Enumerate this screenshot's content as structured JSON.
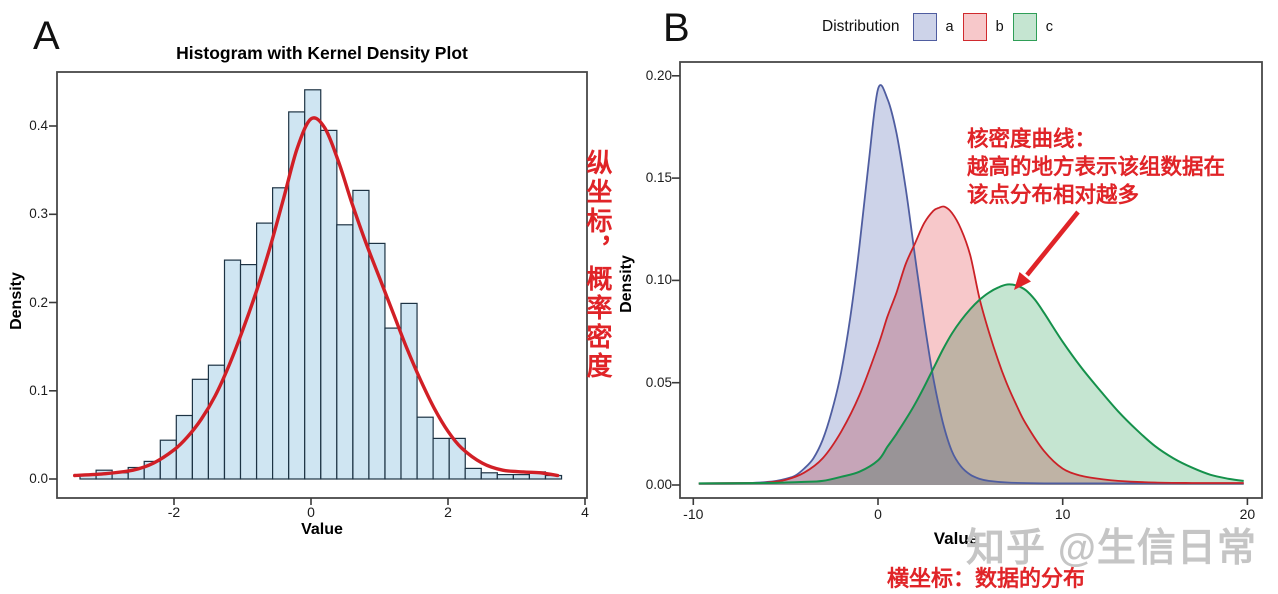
{
  "watermark_text": "知乎 @生信日常",
  "annotations": {
    "note_color": "#e02428",
    "y_axis_note_vertical": "纵坐标，概率密度",
    "kde_note_line1": "核密度曲线：",
    "kde_note_line2": "越高的地方表示该组数据在",
    "kde_note_line3": "该点分布相对越多",
    "x_axis_note": "横坐标：数据的分布"
  },
  "chart_data": [
    {
      "id": "A",
      "panel_label": "A",
      "type": "histogram+kde",
      "title": "Histogram with Kernel Density Plot",
      "xlabel": "Value",
      "ylabel": "Density",
      "xlim": [
        -3.75,
        4.05
      ],
      "ylim": [
        0,
        0.461
      ],
      "x_ticks": [
        {
          "v": -2,
          "label": "-2"
        },
        {
          "v": 0,
          "label": "0"
        },
        {
          "v": 2,
          "label": "2"
        },
        {
          "v": 4,
          "label": "4"
        }
      ],
      "y_ticks": [
        {
          "v": 0.0,
          "label": "0.0"
        },
        {
          "v": 0.1,
          "label": "0.1"
        },
        {
          "v": 0.2,
          "label": "0.2"
        },
        {
          "v": 0.3,
          "label": "0.3"
        },
        {
          "v": 0.4,
          "label": "0.4"
        }
      ],
      "bars": {
        "fill": "#cfe5f2",
        "stroke": "#1d3344",
        "bin_start": -3.372,
        "bin_width": 0.2343,
        "heights": [
          0.005,
          0.01,
          0.007,
          0.013,
          0.02,
          0.044,
          0.072,
          0.113,
          0.129,
          0.248,
          0.243,
          0.29,
          0.33,
          0.416,
          0.441,
          0.395,
          0.288,
          0.327,
          0.267,
          0.171,
          0.199,
          0.07,
          0.046,
          0.046,
          0.012,
          0.007,
          0.005,
          0.005,
          0.008,
          0.004
        ]
      },
      "kde": {
        "color": "#d11f26",
        "x": [
          -3.45,
          -3.0,
          -2.6,
          -2.3,
          -2.0,
          -1.8,
          -1.6,
          -1.4,
          -1.2,
          -1.0,
          -0.8,
          -0.6,
          -0.4,
          -0.2,
          0,
          0.2,
          0.4,
          0.6,
          0.8,
          1.0,
          1.2,
          1.4,
          1.6,
          1.8,
          2.0,
          2.2,
          2.5,
          2.8,
          3.1,
          3.35,
          3.6
        ],
        "y": [
          0.004,
          0.006,
          0.01,
          0.018,
          0.033,
          0.048,
          0.068,
          0.094,
          0.128,
          0.168,
          0.212,
          0.262,
          0.318,
          0.375,
          0.408,
          0.398,
          0.36,
          0.312,
          0.268,
          0.228,
          0.188,
          0.148,
          0.112,
          0.08,
          0.054,
          0.035,
          0.018,
          0.01,
          0.008,
          0.007,
          0.004
        ]
      }
    },
    {
      "id": "B",
      "panel_label": "B",
      "type": "density",
      "xlabel": "Value",
      "ylabel": "Density",
      "xlim": [
        -10.7,
        20.8
      ],
      "ylim": [
        0,
        0.213
      ],
      "x_ticks": [
        {
          "v": -10,
          "label": "-10"
        },
        {
          "v": 0,
          "label": "0"
        },
        {
          "v": 10,
          "label": "10"
        },
        {
          "v": 20,
          "label": "20"
        }
      ],
      "y_ticks": [
        {
          "v": 0.0,
          "label": "0.00"
        },
        {
          "v": 0.05,
          "label": "0.05"
        },
        {
          "v": 0.1,
          "label": "0.10"
        },
        {
          "v": 0.15,
          "label": "0.15"
        },
        {
          "v": 0.2,
          "label": "0.20"
        }
      ],
      "legend": {
        "title": "Distribution",
        "items": [
          {
            "label": "a",
            "fill": "#cdd3e9",
            "stroke": "#4f5da0"
          },
          {
            "label": "b",
            "fill": "#f7c8ca",
            "stroke": "#d02a2e"
          },
          {
            "label": "c",
            "fill": "#c5e5d1",
            "stroke": "#2f9e57"
          }
        ]
      },
      "series": [
        {
          "name": "a",
          "fill": "#cdd3e9",
          "stroke": "#4f5da0",
          "x": [
            -9.7,
            -7,
            -6,
            -5.5,
            -5,
            -4.5,
            -4,
            -3.5,
            -3,
            -2.5,
            -2,
            -1.5,
            -1,
            -0.5,
            0,
            0.5,
            1,
            1.5,
            2,
            2.5,
            3,
            3.5,
            4,
            4.5,
            5,
            5.5,
            6,
            7,
            9,
            12,
            16,
            19.8
          ],
          "y": [
            0.0008,
            0.001,
            0.0015,
            0.002,
            0.003,
            0.0045,
            0.008,
            0.013,
            0.022,
            0.036,
            0.055,
            0.082,
            0.117,
            0.158,
            0.1935,
            0.189,
            0.172,
            0.145,
            0.112,
            0.08,
            0.052,
            0.031,
            0.0165,
            0.009,
            0.005,
            0.003,
            0.002,
            0.0012,
            0.0008,
            0.0008,
            0.0008,
            0.0008
          ]
        },
        {
          "name": "b",
          "fill": "#f7c8ca",
          "stroke": "#cb2127",
          "x": [
            -9.7,
            -7,
            -6,
            -5,
            -4,
            -3,
            -2,
            -1,
            0,
            0.5,
            1,
            1.5,
            2,
            2.5,
            3,
            3.3,
            3.6,
            4,
            4.5,
            5,
            5.5,
            6,
            6.5,
            7,
            7.5,
            8,
            9,
            10,
            11,
            12,
            13,
            15,
            17,
            19.8
          ],
          "y": [
            0.0008,
            0.001,
            0.0012,
            0.0025,
            0.006,
            0.013,
            0.026,
            0.044,
            0.068,
            0.082,
            0.094,
            0.108,
            0.118,
            0.128,
            0.134,
            0.1355,
            0.136,
            0.133,
            0.125,
            0.112,
            0.091,
            0.075,
            0.061,
            0.049,
            0.039,
            0.03,
            0.0165,
            0.008,
            0.0045,
            0.003,
            0.002,
            0.0012,
            0.001,
            0.001
          ]
        },
        {
          "name": "c",
          "fill": "#c5e5d1",
          "stroke": "#15914b",
          "x": [
            -9.7,
            -6,
            -5,
            -4,
            -3,
            -2,
            -1,
            0,
            0.5,
            1,
            1.5,
            2,
            2.5,
            3,
            3.5,
            4,
            4.5,
            5,
            5.5,
            6,
            6.5,
            7,
            7.5,
            8,
            8.5,
            9,
            10,
            11,
            12,
            13,
            14,
            15,
            16,
            17,
            18,
            19,
            19.8
          ],
          "y": [
            0.0008,
            0.001,
            0.0012,
            0.0015,
            0.002,
            0.004,
            0.0065,
            0.012,
            0.0185,
            0.025,
            0.032,
            0.0395,
            0.048,
            0.057,
            0.066,
            0.074,
            0.0805,
            0.086,
            0.0905,
            0.094,
            0.0965,
            0.098,
            0.0975,
            0.0952,
            0.0905,
            0.084,
            0.07,
            0.0575,
            0.0465,
            0.036,
            0.027,
            0.019,
            0.013,
            0.0085,
            0.005,
            0.003,
            0.002
          ]
        }
      ]
    }
  ]
}
